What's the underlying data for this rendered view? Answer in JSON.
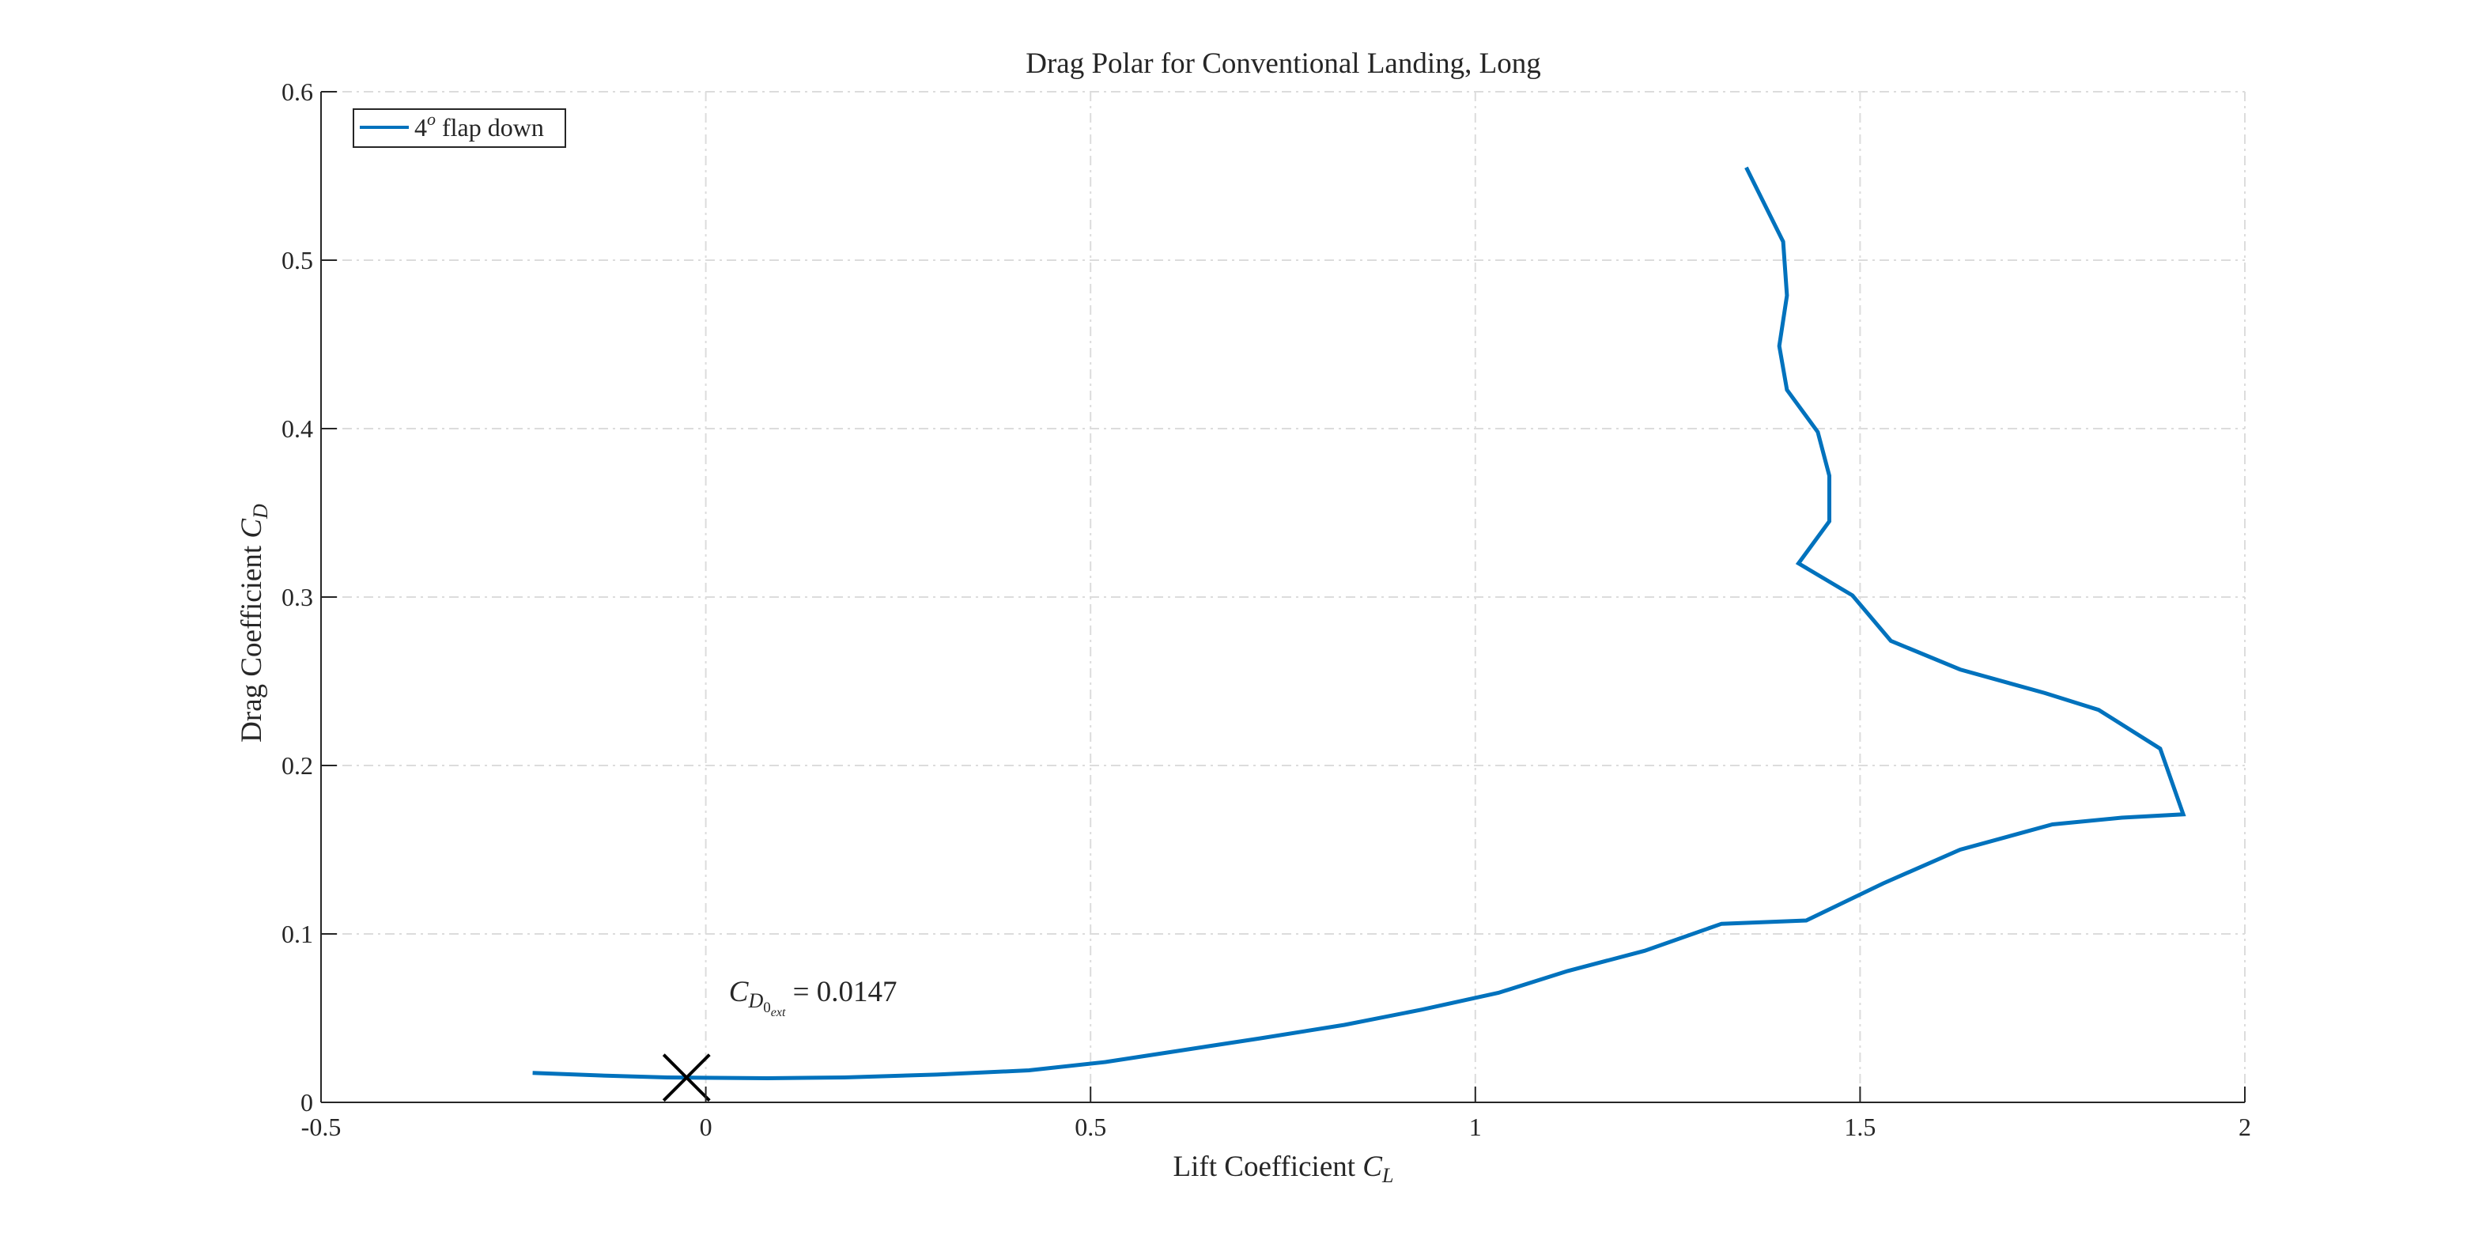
{
  "chart_data": {
    "type": "line",
    "title": "Drag Polar for Conventional Landing, Long",
    "xlabel": {
      "main": "Lift Coefficient ",
      "symbol": "C",
      "sub": "L"
    },
    "ylabel": {
      "main": "Drag Coefficient ",
      "symbol": "C",
      "sub": "D"
    },
    "xlim": [
      -0.5,
      2
    ],
    "ylim": [
      0,
      0.6
    ],
    "xticks": [
      -0.5,
      0,
      0.5,
      1,
      1.5,
      2
    ],
    "xtick_labels": [
      "-0.5",
      "0",
      "0.5",
      "1",
      "1.5",
      "2"
    ],
    "yticks": [
      0,
      0.1,
      0.2,
      0.3,
      0.4,
      0.5,
      0.6
    ],
    "ytick_labels": [
      "0",
      "0.1",
      "0.2",
      "0.3",
      "0.4",
      "0.5",
      "0.6"
    ],
    "grid": true,
    "legend": {
      "position": "top-left",
      "entries": [
        {
          "base": "4",
          "sup": "o",
          "rest": " flap down"
        }
      ]
    },
    "series": [
      {
        "color": "#0072BD",
        "x": [
          -0.225,
          -0.14,
          -0.05,
          0.08,
          0.18,
          0.3,
          0.42,
          0.52,
          0.62,
          0.72,
          0.83,
          0.93,
          1.03,
          1.12,
          1.22,
          1.32,
          1.43,
          1.53,
          1.63,
          1.75,
          1.84,
          1.92,
          1.89,
          1.81,
          1.74,
          1.63,
          1.54,
          1.49,
          1.42,
          1.46,
          1.46,
          1.445,
          1.405,
          1.395,
          1.405,
          1.4,
          1.352
        ],
        "y": [
          0.0175,
          0.016,
          0.0148,
          0.0143,
          0.0148,
          0.0165,
          0.019,
          0.024,
          0.031,
          0.038,
          0.046,
          0.055,
          0.065,
          0.078,
          0.09,
          0.106,
          0.108,
          0.13,
          0.15,
          0.165,
          0.169,
          0.171,
          0.21,
          0.233,
          0.243,
          0.257,
          0.274,
          0.301,
          0.32,
          0.345,
          0.372,
          0.398,
          0.423,
          0.449,
          0.479,
          0.511,
          0.555
        ]
      }
    ],
    "markers": [
      {
        "type": "x",
        "x": -0.025,
        "y": 0.0147,
        "color": "#000000"
      }
    ],
    "annotation": {
      "symbol": "C",
      "sub": "D",
      "subsub": "0",
      "subsubsub": "ext",
      "text": " = 0.0147",
      "x": 0.03,
      "y": 0.06
    }
  }
}
